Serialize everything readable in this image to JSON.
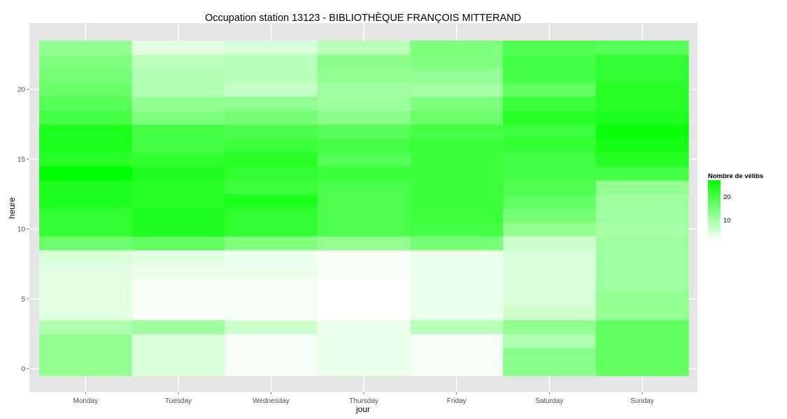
{
  "chart_data": {
    "type": "heatmap",
    "title": "Occupation station 13123 - BIBLIOTHÈQUE FRANÇOIS MITTERAND",
    "xlabel": "jour",
    "ylabel": "heure",
    "x": [
      "Monday",
      "Tuesday",
      "Wednesday",
      "Thursday",
      "Friday",
      "Saturday",
      "Sunday"
    ],
    "y": [
      0,
      1,
      2,
      3,
      4,
      5,
      6,
      7,
      8,
      9,
      10,
      11,
      12,
      13,
      14,
      15,
      16,
      17,
      18,
      19,
      20,
      21,
      22,
      23
    ],
    "y_ticks": [
      0,
      5,
      10,
      15,
      20
    ],
    "ylim": [
      -0.5,
      23.5
    ],
    "values": [
      [
        12,
        5,
        2,
        3,
        2,
        13,
        17
      ],
      [
        12,
        5,
        2,
        3,
        2,
        13,
        17
      ],
      [
        12,
        5,
        2,
        3,
        2,
        9,
        17
      ],
      [
        9,
        11,
        6,
        3,
        8,
        12,
        17
      ],
      [
        4,
        2,
        2,
        1,
        3,
        6,
        12
      ],
      [
        4,
        2,
        2,
        1,
        3,
        5,
        12
      ],
      [
        4,
        2,
        2,
        1,
        3,
        5,
        11
      ],
      [
        4,
        3,
        3,
        2,
        3,
        5,
        11
      ],
      [
        5,
        4,
        3,
        2,
        3,
        5,
        11
      ],
      [
        16,
        17,
        14,
        12,
        15,
        6,
        11
      ],
      [
        22,
        24,
        22,
        19,
        20,
        12,
        10
      ],
      [
        22,
        24,
        22,
        19,
        21,
        15,
        11
      ],
      [
        24,
        23,
        24,
        19,
        21,
        17,
        11
      ],
      [
        24,
        23,
        21,
        19,
        21,
        19,
        12
      ],
      [
        27,
        24,
        22,
        21,
        21,
        20,
        20
      ],
      [
        23,
        22,
        23,
        18,
        21,
        20,
        23
      ],
      [
        24,
        20,
        21,
        20,
        21,
        22,
        25
      ],
      [
        24,
        20,
        19,
        18,
        20,
        21,
        26
      ],
      [
        20,
        14,
        15,
        13,
        16,
        23,
        24
      ],
      [
        18,
        12,
        12,
        11,
        14,
        21,
        23
      ],
      [
        16,
        9,
        7,
        11,
        10,
        17,
        23
      ],
      [
        15,
        9,
        8,
        12,
        12,
        20,
        22
      ],
      [
        14,
        8,
        8,
        13,
        14,
        20,
        22
      ],
      [
        12,
        4,
        5,
        8,
        14,
        19,
        18
      ]
    ],
    "legend": {
      "title": "Nombre de vélibs",
      "ticks": [
        10,
        20
      ],
      "placement": "right"
    },
    "colors": {
      "low": "#FFFFFF",
      "high": "#00FF00",
      "panel": "#E5E5E5",
      "grid": "#FFFFFF"
    },
    "grid": true
  }
}
